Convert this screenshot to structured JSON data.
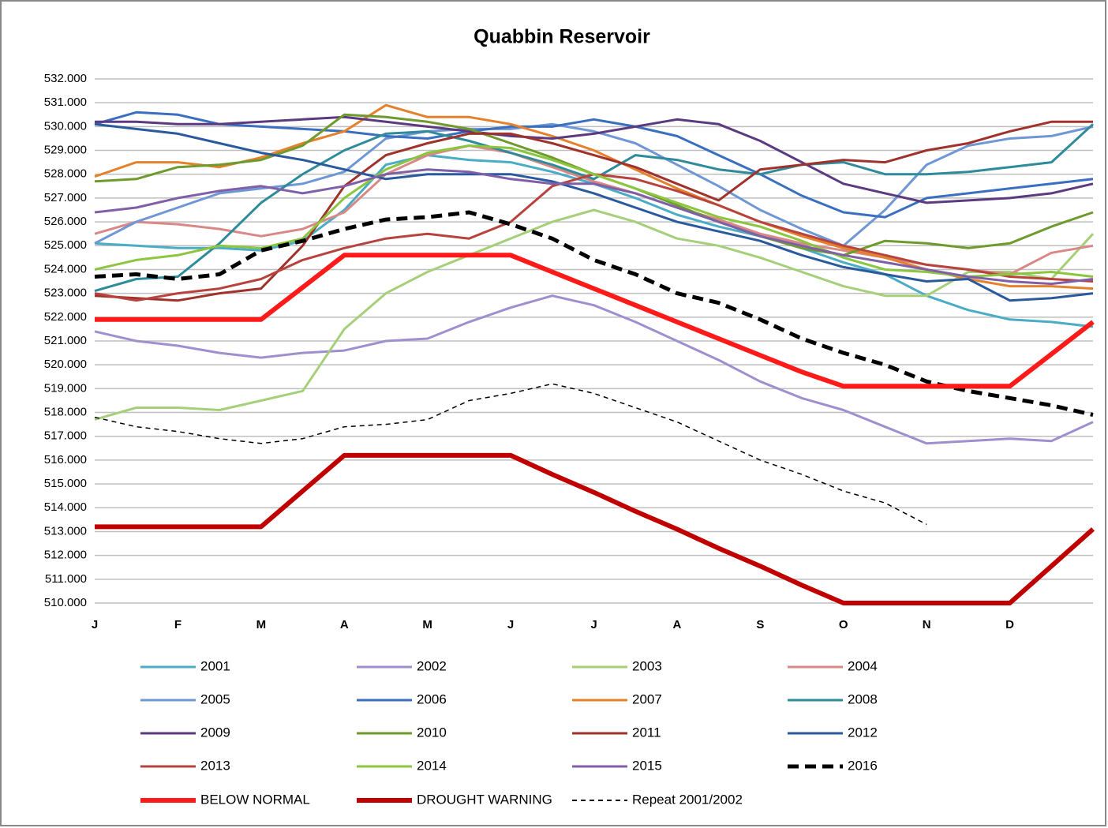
{
  "chart_data": {
    "type": "line",
    "title": "Quabbin Reservoir",
    "categories": [
      "J",
      null,
      "F",
      null,
      "M",
      null,
      "A",
      null,
      "M",
      null,
      "J",
      null,
      "J",
      null,
      "A",
      null,
      "S",
      null,
      "O",
      null,
      "N",
      null,
      "D",
      null,
      null
    ],
    "ylim": [
      510,
      532
    ],
    "yticks": [
      {
        "value": 510,
        "label": "510.000"
      },
      {
        "value": 511,
        "label": "511.000"
      },
      {
        "value": 512,
        "label": "512.000"
      },
      {
        "value": 513,
        "label": "513.000"
      },
      {
        "value": 514,
        "label": "514.000"
      },
      {
        "value": 515,
        "label": "515.000"
      },
      {
        "value": 516,
        "label": "516.000"
      },
      {
        "value": 517,
        "label": "517.000"
      },
      {
        "value": 518,
        "label": "518.000"
      },
      {
        "value": 519,
        "label": "519.000"
      },
      {
        "value": 520,
        "label": "520.000"
      },
      {
        "value": 521,
        "label": "521.000"
      },
      {
        "value": 522,
        "label": "522.000"
      },
      {
        "value": 523,
        "label": "523.000"
      },
      {
        "value": 524,
        "label": "524.000"
      },
      {
        "value": 525,
        "label": "525.000"
      },
      {
        "value": 526,
        "label": "526.000"
      },
      {
        "value": 527,
        "label": "527.000"
      },
      {
        "value": 528,
        "label": "528.000"
      },
      {
        "value": 529,
        "label": "529.000"
      },
      {
        "value": 530,
        "label": "530.000"
      },
      {
        "value": 531,
        "label": "531.000"
      },
      {
        "value": 532,
        "label": "532.000"
      }
    ],
    "grid": true,
    "series": [
      {
        "name": "2001",
        "color": "#4bacc6",
        "width": 3,
        "values": [
          525.1,
          525.0,
          524.9,
          524.9,
          524.8,
          525.2,
          526.5,
          528.4,
          528.8,
          528.6,
          528.5,
          528.1,
          527.6,
          527.0,
          526.3,
          525.8,
          525.4,
          524.9,
          524.3,
          523.8,
          522.9,
          522.3,
          521.9,
          521.8,
          521.6
        ]
      },
      {
        "name": "2002",
        "color": "#a08fcf",
        "width": 3,
        "values": [
          521.4,
          521.0,
          520.8,
          520.5,
          520.3,
          520.5,
          520.6,
          521.0,
          521.1,
          521.8,
          522.4,
          522.9,
          522.5,
          521.8,
          521.0,
          520.2,
          519.3,
          518.6,
          518.1,
          517.4,
          516.7,
          516.8,
          516.9,
          516.8,
          517.6
        ]
      },
      {
        "name": "2003",
        "color": "#a6cf7a",
        "width": 3,
        "values": [
          517.7,
          518.2,
          518.2,
          518.1,
          518.5,
          518.9,
          521.5,
          523.0,
          523.9,
          524.6,
          525.3,
          526.0,
          526.5,
          526.0,
          525.3,
          525.0,
          524.5,
          523.9,
          523.3,
          522.9,
          522.9,
          523.9,
          523.9,
          523.6,
          525.5
        ]
      },
      {
        "name": "2004",
        "color": "#d98886",
        "width": 3,
        "values": [
          525.5,
          526.0,
          525.9,
          525.7,
          525.4,
          525.7,
          526.4,
          528.0,
          528.8,
          529.2,
          528.9,
          528.3,
          527.7,
          527.2,
          526.6,
          526.1,
          525.5,
          525.1,
          524.8,
          524.5,
          524.2,
          524.0,
          523.8,
          524.7,
          525.0
        ]
      },
      {
        "name": "2005",
        "color": "#6f97d6",
        "width": 3,
        "values": [
          525.1,
          526.0,
          526.6,
          527.2,
          527.4,
          527.6,
          528.1,
          529.5,
          529.8,
          529.9,
          529.9,
          530.1,
          529.8,
          529.3,
          528.4,
          527.5,
          526.5,
          525.7,
          525.0,
          526.5,
          528.4,
          529.2,
          529.5,
          529.6,
          530.0
        ]
      },
      {
        "name": "2006",
        "color": "#3a6fc0",
        "width": 3,
        "values": [
          530.1,
          530.6,
          530.5,
          530.1,
          530.0,
          529.9,
          529.8,
          529.6,
          529.5,
          529.8,
          530.0,
          530.0,
          530.3,
          530.0,
          529.6,
          528.8,
          528.0,
          527.1,
          526.4,
          526.2,
          527.0,
          527.2,
          527.4,
          527.6,
          527.8
        ]
      },
      {
        "name": "2007",
        "color": "#e5802c",
        "width": 3,
        "values": [
          527.9,
          528.5,
          528.5,
          528.3,
          528.7,
          529.3,
          529.8,
          530.9,
          530.4,
          530.4,
          530.1,
          529.6,
          529.0,
          528.2,
          527.4,
          526.7,
          526.0,
          525.4,
          524.9,
          524.5,
          524.0,
          523.6,
          523.3,
          523.3,
          523.2
        ]
      },
      {
        "name": "2008",
        "color": "#2e8b9a",
        "width": 3,
        "values": [
          523.1,
          523.6,
          523.7,
          525.1,
          526.8,
          528.0,
          529.0,
          529.7,
          529.8,
          529.4,
          528.9,
          528.4,
          527.8,
          528.8,
          528.6,
          528.2,
          528.0,
          528.4,
          528.5,
          528.0,
          528.0,
          528.1,
          528.3,
          528.5,
          530.1
        ]
      },
      {
        "name": "2009",
        "color": "#5b3a80",
        "width": 3,
        "values": [
          530.2,
          530.2,
          530.1,
          530.1,
          530.2,
          530.3,
          530.4,
          530.2,
          530.0,
          529.8,
          529.6,
          529.5,
          529.7,
          530.0,
          530.3,
          530.1,
          529.4,
          528.5,
          527.6,
          527.2,
          526.8,
          526.9,
          527.0,
          527.2,
          527.6
        ]
      },
      {
        "name": "2010",
        "color": "#6e9a2e",
        "width": 3,
        "values": [
          527.7,
          527.8,
          528.3,
          528.4,
          528.6,
          529.2,
          530.5,
          530.4,
          530.2,
          529.9,
          529.3,
          528.7,
          528.0,
          527.4,
          526.7,
          526.0,
          525.4,
          524.9,
          524.6,
          525.2,
          525.1,
          524.9,
          525.1,
          525.8,
          526.4
        ]
      },
      {
        "name": "2011",
        "color": "#a0322c",
        "width": 3,
        "values": [
          522.9,
          522.8,
          522.7,
          523.0,
          523.2,
          525.0,
          527.5,
          528.8,
          529.3,
          529.7,
          529.7,
          529.3,
          528.8,
          528.3,
          527.6,
          526.9,
          528.2,
          528.4,
          528.6,
          528.5,
          529.0,
          529.3,
          529.8,
          530.2,
          530.2
        ]
      },
      {
        "name": "2012",
        "color": "#2a5a9e",
        "width": 3,
        "values": [
          530.1,
          529.9,
          529.7,
          529.3,
          528.9,
          528.6,
          528.2,
          527.8,
          528.0,
          528.0,
          528.0,
          527.7,
          527.2,
          526.6,
          526.0,
          525.6,
          525.2,
          524.6,
          524.1,
          523.8,
          523.5,
          523.6,
          522.7,
          522.8,
          523.0
        ]
      },
      {
        "name": "2013",
        "color": "#b8433e",
        "width": 3,
        "values": [
          523.0,
          522.7,
          523.0,
          523.2,
          523.6,
          524.4,
          524.9,
          525.3,
          525.5,
          525.3,
          526.0,
          527.5,
          528.0,
          527.8,
          527.3,
          526.7,
          526.0,
          525.5,
          525.0,
          524.6,
          524.2,
          524.0,
          523.7,
          523.6,
          523.5
        ]
      },
      {
        "name": "2014",
        "color": "#8cc63f",
        "width": 3,
        "values": [
          524.0,
          524.4,
          524.6,
          525.0,
          524.9,
          525.3,
          527.0,
          528.2,
          528.9,
          529.2,
          529.1,
          528.6,
          528.0,
          527.4,
          526.8,
          526.2,
          525.8,
          525.2,
          524.5,
          524.0,
          523.9,
          523.7,
          523.8,
          523.9,
          523.7
        ]
      },
      {
        "name": "2015",
        "color": "#7f5fa8",
        "width": 3,
        "values": [
          526.4,
          526.6,
          527.0,
          527.3,
          527.5,
          527.2,
          527.5,
          528.0,
          528.2,
          528.1,
          527.8,
          527.6,
          527.6,
          527.2,
          526.6,
          526.0,
          525.4,
          525.0,
          524.6,
          524.3,
          524.0,
          523.7,
          523.5,
          523.4,
          523.6
        ]
      },
      {
        "name": "2016",
        "color": "#000000",
        "width": 5,
        "dash": "14 8",
        "values": [
          523.7,
          523.8,
          523.6,
          523.8,
          524.8,
          525.2,
          525.7,
          526.1,
          526.2,
          526.4,
          525.9,
          525.3,
          524.4,
          523.8,
          523.0,
          522.6,
          521.9,
          521.1,
          520.5,
          520.0,
          519.3,
          518.9,
          518.6,
          518.3,
          517.9
        ]
      },
      {
        "name": "BELOW NORMAL",
        "color": "#ff1a1a",
        "width": 6,
        "values": [
          521.9,
          521.9,
          521.9,
          521.9,
          521.9,
          523.25,
          524.6,
          524.6,
          524.6,
          524.6,
          524.6,
          523.9,
          523.2,
          522.5,
          521.8,
          521.1,
          520.4,
          519.7,
          519.1,
          519.1,
          519.1,
          519.1,
          519.1,
          520.45,
          521.8
        ]
      },
      {
        "name": "DROUGHT WARNING",
        "color": "#c00000",
        "width": 6,
        "values": [
          513.2,
          513.2,
          513.2,
          513.2,
          513.2,
          514.7,
          516.2,
          516.2,
          516.2,
          516.2,
          516.2,
          515.4,
          514.65,
          513.85,
          513.1,
          512.3,
          511.55,
          510.75,
          510.0,
          510.0,
          510.0,
          510.0,
          510.0,
          511.55,
          513.1
        ]
      },
      {
        "name": "Repeat 2001/2002",
        "color": "#000000",
        "width": 1.5,
        "dash": "6 5",
        "values": [
          517.8,
          517.4,
          517.2,
          516.9,
          516.7,
          516.9,
          517.4,
          517.5,
          517.7,
          518.5,
          518.8,
          519.2,
          518.8,
          518.2,
          517.6,
          516.8,
          516.0,
          515.4,
          514.7,
          514.2,
          513.3,
          null,
          null,
          null,
          null
        ]
      }
    ]
  }
}
